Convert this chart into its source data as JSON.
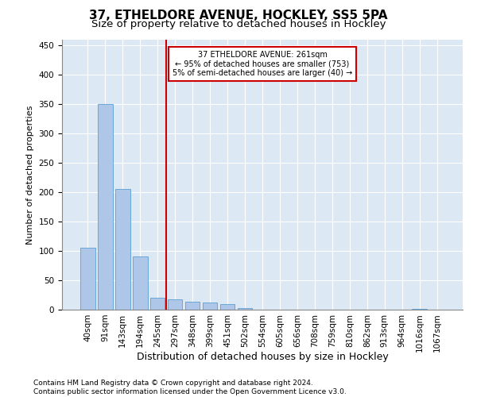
{
  "title1": "37, ETHELDORE AVENUE, HOCKLEY, SS5 5PA",
  "title2": "Size of property relative to detached houses in Hockley",
  "xlabel": "Distribution of detached houses by size in Hockley",
  "ylabel": "Number of detached properties",
  "bar_labels": [
    "40sqm",
    "91sqm",
    "143sqm",
    "194sqm",
    "245sqm",
    "297sqm",
    "348sqm",
    "399sqm",
    "451sqm",
    "502sqm",
    "554sqm",
    "605sqm",
    "656sqm",
    "708sqm",
    "759sqm",
    "810sqm",
    "862sqm",
    "913sqm",
    "964sqm",
    "1016sqm",
    "1067sqm"
  ],
  "bar_values": [
    105,
    350,
    205,
    90,
    20,
    18,
    14,
    12,
    10,
    3,
    0,
    0,
    0,
    0,
    0,
    0,
    0,
    0,
    0,
    2,
    0
  ],
  "bar_color": "#aec6e8",
  "bar_edge_color": "#5a9fd4",
  "vline_x": 4.5,
  "vline_color": "#cc0000",
  "annotation_text": "37 ETHELDORE AVENUE: 261sqm\n← 95% of detached houses are smaller (753)\n5% of semi-detached houses are larger (40) →",
  "annotation_box_color": "#ffffff",
  "annotation_box_edge": "#cc0000",
  "ylim": [
    0,
    460
  ],
  "yticks": [
    0,
    50,
    100,
    150,
    200,
    250,
    300,
    350,
    400,
    450
  ],
  "background_color": "#dce9f5",
  "footer": "Contains HM Land Registry data © Crown copyright and database right 2024.\nContains public sector information licensed under the Open Government Licence v3.0.",
  "title1_fontsize": 11,
  "title2_fontsize": 9.5,
  "xlabel_fontsize": 9,
  "ylabel_fontsize": 8,
  "tick_fontsize": 7.5,
  "footer_fontsize": 6.5
}
